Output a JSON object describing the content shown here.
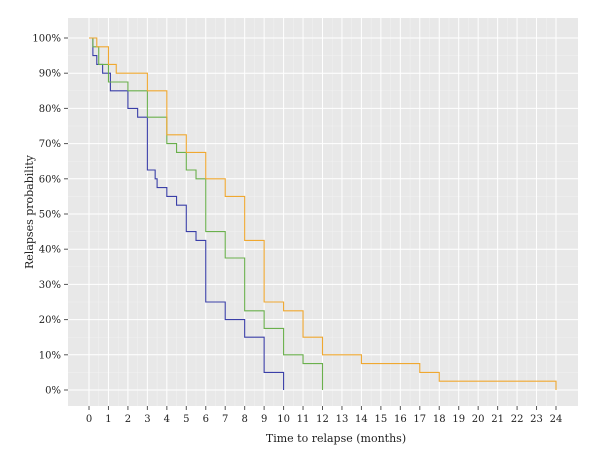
{
  "chart_data": {
    "type": "line",
    "step": true,
    "title": "",
    "xlabel": "Time to relapse (months)",
    "ylabel": "Relapses probability",
    "xlim": [
      0,
      24
    ],
    "ylim": [
      0,
      100
    ],
    "x_ticks": [
      "0",
      "1",
      "2",
      "3",
      "4",
      "5",
      "6",
      "7",
      "8",
      "9",
      "10",
      "11",
      "12",
      "13",
      "14",
      "15",
      "16",
      "17",
      "18",
      "19",
      "20",
      "21",
      "22",
      "23",
      "24"
    ],
    "y_ticks": [
      "0%",
      "10%",
      "20%",
      "30%",
      "40%",
      "50%",
      "60%",
      "70%",
      "80%",
      "90%",
      "100%"
    ],
    "grid": true,
    "legend": "none",
    "series": [
      {
        "color": "#3a3fa8",
        "points": [
          [
            0.2,
            100
          ],
          [
            0.2,
            95
          ],
          [
            0.4,
            95
          ],
          [
            0.4,
            92.5
          ],
          [
            0.7,
            92.5
          ],
          [
            0.7,
            90
          ],
          [
            1.1,
            90
          ],
          [
            1.1,
            85
          ],
          [
            2,
            85
          ],
          [
            2,
            80
          ],
          [
            2.5,
            80
          ],
          [
            2.5,
            77.5
          ],
          [
            3,
            77.5
          ],
          [
            3,
            62.5
          ],
          [
            3.4,
            62.5
          ],
          [
            3.4,
            60
          ],
          [
            3.5,
            60
          ],
          [
            3.5,
            57.5
          ],
          [
            4,
            57.5
          ],
          [
            4,
            55
          ],
          [
            4.5,
            55
          ],
          [
            4.5,
            52.5
          ],
          [
            5,
            52.5
          ],
          [
            5,
            45
          ],
          [
            5.5,
            45
          ],
          [
            5.5,
            42.5
          ],
          [
            6,
            42.5
          ],
          [
            6,
            25
          ],
          [
            7,
            25
          ],
          [
            7,
            20
          ],
          [
            8,
            20
          ],
          [
            8,
            15
          ],
          [
            9,
            15
          ],
          [
            9,
            5
          ],
          [
            10,
            5
          ],
          [
            10,
            0
          ]
        ]
      },
      {
        "color": "#6ab04c",
        "points": [
          [
            0.2,
            100
          ],
          [
            0.2,
            97.5
          ],
          [
            0.5,
            97.5
          ],
          [
            0.5,
            92.5
          ],
          [
            1,
            92.5
          ],
          [
            1,
            87.5
          ],
          [
            2,
            87.5
          ],
          [
            2,
            85
          ],
          [
            3,
            85
          ],
          [
            3,
            77.5
          ],
          [
            4,
            77.5
          ],
          [
            4,
            70
          ],
          [
            4.5,
            70
          ],
          [
            4.5,
            67.5
          ],
          [
            5,
            67.5
          ],
          [
            5,
            62.5
          ],
          [
            5.5,
            62.5
          ],
          [
            5.5,
            60
          ],
          [
            6,
            60
          ],
          [
            6,
            45
          ],
          [
            7,
            45
          ],
          [
            7,
            37.5
          ],
          [
            8,
            37.5
          ],
          [
            8,
            22.5
          ],
          [
            9,
            22.5
          ],
          [
            9,
            17.5
          ],
          [
            10,
            17.5
          ],
          [
            10,
            10
          ],
          [
            11,
            10
          ],
          [
            11,
            7.5
          ],
          [
            12,
            7.5
          ],
          [
            12,
            0
          ]
        ]
      },
      {
        "color": "#f0a830",
        "points": [
          [
            0,
            100
          ],
          [
            0.4,
            100
          ],
          [
            0.4,
            97.5
          ],
          [
            1,
            97.5
          ],
          [
            1,
            92.5
          ],
          [
            1.4,
            92.5
          ],
          [
            1.4,
            90
          ],
          [
            3,
            90
          ],
          [
            3,
            85
          ],
          [
            4,
            85
          ],
          [
            4,
            72.5
          ],
          [
            5,
            72.5
          ],
          [
            5,
            67.5
          ],
          [
            6,
            67.5
          ],
          [
            6,
            60
          ],
          [
            7,
            60
          ],
          [
            7,
            55
          ],
          [
            8,
            55
          ],
          [
            8,
            42.5
          ],
          [
            9,
            42.5
          ],
          [
            9,
            25
          ],
          [
            10,
            25
          ],
          [
            10,
            22.5
          ],
          [
            11,
            22.5
          ],
          [
            11,
            15
          ],
          [
            12,
            15
          ],
          [
            12,
            10
          ],
          [
            14,
            10
          ],
          [
            14,
            7.5
          ],
          [
            17,
            7.5
          ],
          [
            17,
            5
          ],
          [
            18,
            5
          ],
          [
            18,
            2.5
          ],
          [
            24,
            2.5
          ],
          [
            24,
            0
          ]
        ]
      }
    ]
  }
}
